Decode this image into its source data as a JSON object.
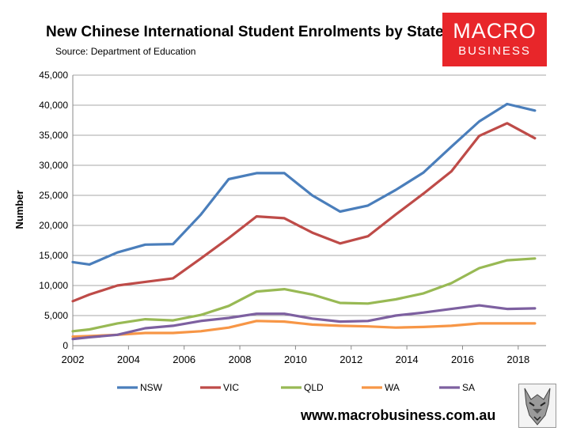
{
  "header": {
    "title": "New Chinese International Student Enrolments by State",
    "source": "Source: Department of Education"
  },
  "logo": {
    "line1": "MACRO",
    "line2": "BUSINESS"
  },
  "footer": {
    "website": "www.macrobusiness.com.au"
  },
  "icons": {
    "brand_mascot": "wolf-head-icon"
  },
  "chart_data": {
    "type": "line",
    "title": "New Chinese International Student Enrolments by State",
    "ylabel": "Number",
    "xlabel": "",
    "ylim": [
      0,
      45000
    ],
    "xlim": [
      2002,
      2019
    ],
    "x_ticks": [
      2002,
      2004,
      2006,
      2008,
      2010,
      2012,
      2014,
      2016,
      2018
    ],
    "y_ticks": [
      0,
      5000,
      10000,
      15000,
      20000,
      25000,
      30000,
      35000,
      40000,
      45000
    ],
    "y_tick_labels": [
      "0",
      "5,000",
      "10,000",
      "15,000",
      "20,000",
      "25,000",
      "30,000",
      "35,000",
      "40,000",
      "45,000"
    ],
    "grid": "horizontal",
    "legend_position": "bottom",
    "x": [
      2002,
      2002.6,
      2003.6,
      2004.6,
      2005.6,
      2006.6,
      2007.6,
      2008.6,
      2009.6,
      2010.6,
      2011.6,
      2012.6,
      2013.6,
      2014.6,
      2015.6,
      2016.6,
      2017.6,
      2018.6
    ],
    "series": [
      {
        "name": "NSW",
        "color": "#4a7ebb",
        "values": [
          13900,
          13500,
          15500,
          16800,
          16900,
          21800,
          27700,
          28700,
          28700,
          25000,
          22300,
          23300,
          25900,
          28800,
          33100,
          37300,
          40200,
          39100
        ]
      },
      {
        "name": "VIC",
        "color": "#be4b48",
        "values": [
          7400,
          8500,
          10000,
          10600,
          11200,
          14500,
          17900,
          21500,
          21200,
          18800,
          17000,
          18200,
          21800,
          25300,
          29000,
          34900,
          37000,
          34500
        ]
      },
      {
        "name": "QLD",
        "color": "#98b954",
        "values": [
          2400,
          2700,
          3700,
          4400,
          4200,
          5100,
          6600,
          9000,
          9400,
          8500,
          7100,
          7000,
          7700,
          8700,
          10400,
          12900,
          14200,
          14500
        ]
      },
      {
        "name": "WA",
        "color": "#f79646",
        "values": [
          1500,
          1600,
          1800,
          2100,
          2100,
          2400,
          3000,
          4100,
          4000,
          3500,
          3300,
          3200,
          3000,
          3100,
          3300,
          3700,
          3700,
          3700
        ]
      },
      {
        "name": "SA",
        "color": "#7d60a0",
        "values": [
          1100,
          1400,
          1800,
          2900,
          3300,
          4100,
          4600,
          5300,
          5300,
          4500,
          4000,
          4100,
          5000,
          5500,
          6100,
          6700,
          6100,
          6200
        ]
      }
    ]
  }
}
